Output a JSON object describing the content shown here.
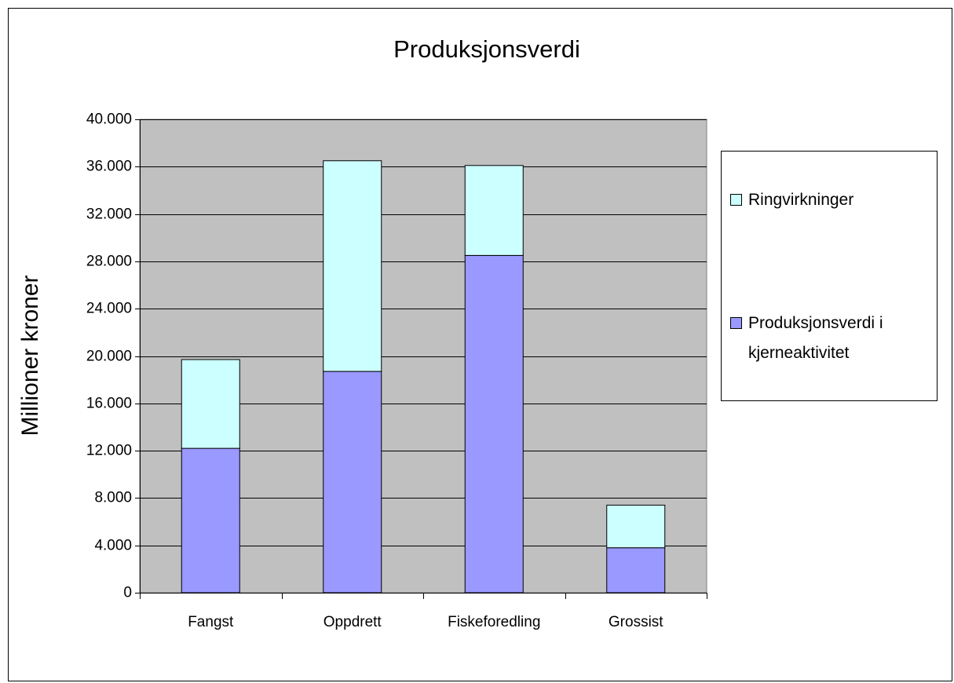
{
  "chart_data": {
    "type": "stacked_bar",
    "title": "Produksjonsverdi",
    "y_label": "Millioner kroner",
    "categories": [
      "Fangst",
      "Oppdrett",
      "Fiskeforedling",
      "Grossist"
    ],
    "series": [
      {
        "name": "Produksjonsverdi i kjerneaktivitet",
        "color": "#9999ff",
        "values": [
          12200,
          18700,
          28500,
          3800
        ]
      },
      {
        "name": "Ringvirkninger",
        "color": "#ccffff",
        "values": [
          7500,
          17800,
          7600,
          3600
        ]
      }
    ],
    "ylim": [
      0,
      40000
    ],
    "yticks": [
      0,
      {
        "value": 4000,
        "label": "4.000"
      },
      {
        "value": 8000,
        "label": "8.000"
      },
      {
        "value": 12000,
        "label": "12.000"
      },
      {
        "value": 16000,
        "label": "16.000"
      },
      {
        "value": 20000,
        "label": "20.000"
      },
      {
        "value": 24000,
        "label": "24.000"
      },
      {
        "value": 28000,
        "label": "28.000"
      },
      {
        "value": 32000,
        "label": "32.000"
      },
      {
        "value": 36000,
        "label": "36.000"
      },
      {
        "value": 40000,
        "label": "40.000"
      }
    ],
    "grid": true,
    "plot_background": "#c0c0c0",
    "legend": "right"
  }
}
